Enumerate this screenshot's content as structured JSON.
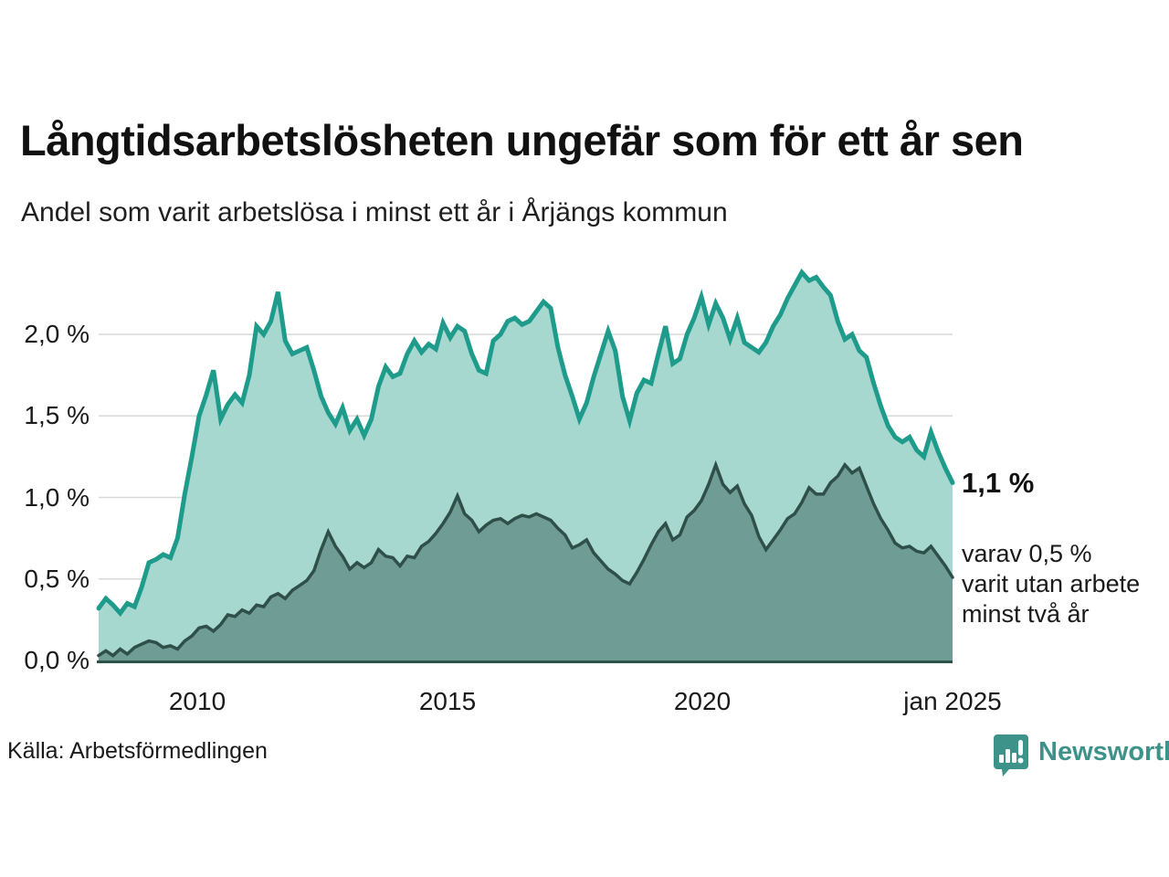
{
  "header": {
    "title": "Långtidsarbetslösheten ungefär som för ett år sen",
    "subtitle": "Andel som varit arbetslösa i minst ett år i Årjängs kommun"
  },
  "chart_data": {
    "type": "area",
    "title": "Långtidsarbetslösheten ungefär som för ett år sen",
    "subtitle": "Andel som varit arbetslösa i minst ett år i Årjängs kommun",
    "unit": "%",
    "x_range_years": [
      2008.0,
      2025.08
    ],
    "ylim": [
      0,
      2.45
    ],
    "grid": "horizontal",
    "x_ticks": [
      "2010",
      "2015",
      "2020",
      "jan 2025"
    ],
    "y_ticks": [
      "0,0 %",
      "0,5 %",
      "1,0 %",
      "1,5 %",
      "2,0 %"
    ],
    "y_tick_values": [
      0,
      0.5,
      1.0,
      1.5,
      2.0
    ],
    "colors": {
      "series1_line": "#1e9b8b",
      "series1_fill": "#a7d8cf",
      "series2_line": "#2f4f49",
      "series2_fill": "#6f9d96",
      "gridline": "#d9d9d9",
      "text": "#1a1a1a",
      "brand_teal": "#3d938a"
    },
    "series": [
      {
        "name": "Andel arbetslösa minst ett år",
        "end_label": "1,1 %",
        "values": [
          0.32,
          0.38,
          0.34,
          0.29,
          0.35,
          0.33,
          0.45,
          0.6,
          0.62,
          0.65,
          0.63,
          0.75,
          1.02,
          1.25,
          1.5,
          1.63,
          1.78,
          1.48,
          1.57,
          1.63,
          1.58,
          1.75,
          2.05,
          2.0,
          2.08,
          2.26,
          1.96,
          1.88,
          1.9,
          1.92,
          1.78,
          1.62,
          1.52,
          1.45,
          1.55,
          1.41,
          1.48,
          1.38,
          1.48,
          1.68,
          1.8,
          1.74,
          1.76,
          1.88,
          1.96,
          1.89,
          1.94,
          1.91,
          2.07,
          1.98,
          2.05,
          2.02,
          1.88,
          1.78,
          1.76,
          1.96,
          2.0,
          2.08,
          2.1,
          2.06,
          2.08,
          2.14,
          2.2,
          2.16,
          1.92,
          1.75,
          1.62,
          1.48,
          1.58,
          1.74,
          1.88,
          2.02,
          1.9,
          1.62,
          1.47,
          1.64,
          1.72,
          1.7,
          1.88,
          2.05,
          1.82,
          1.85,
          2.0,
          2.1,
          2.23,
          2.06,
          2.19,
          2.1,
          1.97,
          2.1,
          1.95,
          1.92,
          1.89,
          1.95,
          2.05,
          2.12,
          2.22,
          2.3,
          2.38,
          2.33,
          2.35,
          2.29,
          2.24,
          2.08,
          1.97,
          2.0,
          1.9,
          1.86,
          1.7,
          1.56,
          1.44,
          1.37,
          1.34,
          1.37,
          1.29,
          1.25,
          1.4,
          1.28,
          1.18,
          1.09
        ]
      },
      {
        "name": "varav utan arbete minst två år",
        "end_label": "0,5 %",
        "values": [
          0.03,
          0.06,
          0.03,
          0.07,
          0.04,
          0.08,
          0.1,
          0.12,
          0.11,
          0.08,
          0.09,
          0.07,
          0.12,
          0.15,
          0.2,
          0.21,
          0.18,
          0.22,
          0.28,
          0.27,
          0.31,
          0.29,
          0.34,
          0.33,
          0.39,
          0.41,
          0.38,
          0.43,
          0.46,
          0.49,
          0.55,
          0.68,
          0.79,
          0.7,
          0.64,
          0.56,
          0.6,
          0.57,
          0.6,
          0.68,
          0.64,
          0.63,
          0.58,
          0.64,
          0.63,
          0.7,
          0.73,
          0.78,
          0.84,
          0.91,
          1.01,
          0.9,
          0.86,
          0.79,
          0.83,
          0.86,
          0.87,
          0.84,
          0.87,
          0.89,
          0.88,
          0.9,
          0.88,
          0.86,
          0.81,
          0.77,
          0.69,
          0.71,
          0.74,
          0.66,
          0.61,
          0.56,
          0.53,
          0.49,
          0.47,
          0.54,
          0.62,
          0.71,
          0.79,
          0.84,
          0.74,
          0.77,
          0.88,
          0.92,
          0.98,
          1.08,
          1.2,
          1.08,
          1.03,
          1.07,
          0.96,
          0.89,
          0.76,
          0.68,
          0.74,
          0.8,
          0.87,
          0.9,
          0.97,
          1.06,
          1.02,
          1.02,
          1.09,
          1.13,
          1.2,
          1.15,
          1.18,
          1.07,
          0.96,
          0.87,
          0.8,
          0.72,
          0.69,
          0.7,
          0.67,
          0.66,
          0.7,
          0.64,
          0.58,
          0.51
        ]
      }
    ],
    "annotations": {
      "end_value": "1,1 %",
      "sub_lines": [
        "varav 0,5 %",
        "varit utan arbete",
        "minst två år"
      ]
    }
  },
  "footer": {
    "source": "Källa: Arbetsförmedlingen",
    "brand": "Newsworthy"
  }
}
